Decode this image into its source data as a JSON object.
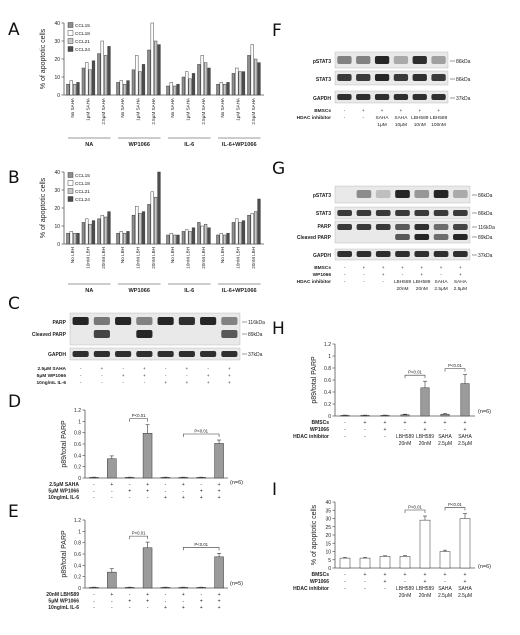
{
  "panel_letters": [
    "A",
    "B",
    "C",
    "D",
    "E",
    "F",
    "G",
    "H",
    "I"
  ],
  "colors": {
    "bar_gray": "#8e8e8e",
    "bar_dark": "#4d4d4d",
    "bar_light": "#c8c8c8",
    "bar_white": "#ffffff",
    "band": "#1b1b1b",
    "blot_bg": "#e9e9e9"
  },
  "chart_data": [
    {
      "id": "A",
      "type": "bar",
      "ylabel": "% of apoptotic cells",
      "ylim": [
        0,
        40
      ],
      "yticks": [
        0,
        10,
        20,
        30,
        40
      ],
      "groups": [
        {
          "name": "NA",
          "n": 4
        },
        {
          "name": "WP1066",
          "n": 4
        },
        {
          "name": "IL-6",
          "n": 4
        },
        {
          "name": "IL-6+WP1066",
          "n": 4
        }
      ],
      "categories": [
        "No SAHA",
        "1μM SAHA",
        "2.5μM SAHA",
        "No SAHA",
        "1μM SAHA",
        "2.5μM SAHA",
        "No SAHA",
        "1μM SAHA",
        "2.5μM SAHA",
        "No SAHA",
        "1μM SAHA",
        "2.5μM SAHA"
      ],
      "series": [
        {
          "name": "CCL15",
          "values": [
            6,
            15,
            23,
            7,
            14,
            25,
            5,
            10,
            17,
            6,
            12,
            22
          ]
        },
        {
          "name": "CCL18",
          "values": [
            8,
            18,
            30,
            8,
            22,
            40,
            7,
            13,
            22,
            7,
            15,
            28
          ]
        },
        {
          "name": "CCL21",
          "values": [
            6,
            14,
            22,
            6,
            13,
            30,
            5,
            9,
            18,
            6,
            13,
            20
          ]
        },
        {
          "name": "CCL24",
          "values": [
            7,
            19,
            27,
            8,
            17,
            28,
            6,
            12,
            15,
            7,
            13,
            18
          ]
        }
      ],
      "legend": "top-left"
    },
    {
      "id": "B",
      "type": "bar",
      "ylabel": "% of apoptotic cells",
      "ylim": [
        0,
        40
      ],
      "yticks": [
        0,
        10,
        20,
        30,
        40
      ],
      "groups": [
        {
          "name": "NA"
        },
        {
          "name": "WP1066"
        },
        {
          "name": "IL-6"
        },
        {
          "name": "IL-6+WP1066"
        }
      ],
      "categories": [
        "No LBH",
        "10nM LBH",
        "20nM LBH",
        "No LBH",
        "10nM LBH",
        "20nM LBH",
        "No LBH",
        "10nM LBH",
        "20nM LBH",
        "No LBH",
        "10nM LBH",
        "20nM LBH"
      ],
      "series": [
        {
          "name": "CCL15",
          "values": [
            6,
            12,
            14,
            6,
            16,
            22,
            5,
            7,
            12,
            5,
            12,
            16
          ]
        },
        {
          "name": "CCL18",
          "values": [
            7,
            14,
            16,
            7,
            21,
            29,
            6,
            8,
            10,
            6,
            14,
            17
          ]
        },
        {
          "name": "CCL21",
          "values": [
            6,
            11,
            15,
            6,
            17,
            26,
            5,
            7,
            11,
            5,
            12,
            18
          ]
        },
        {
          "name": "CCL24",
          "values": [
            6,
            13,
            18,
            7,
            18,
            40,
            5,
            9,
            9,
            6,
            13,
            25
          ]
        }
      ],
      "legend": "top-left"
    },
    {
      "id": "D",
      "type": "bar",
      "ylabel": "p89/total PARP",
      "ylim": [
        0,
        1.2
      ],
      "yticks": [
        "0",
        "0.2",
        "0.4",
        "0.6",
        "0.8",
        "1",
        "1.2"
      ],
      "values": [
        0.01,
        0.34,
        0.01,
        0.79,
        0.01,
        0.01,
        0.01,
        0.61
      ],
      "errors": [
        0.005,
        0.05,
        0.005,
        0.15,
        0.005,
        0.005,
        0.005,
        0.06
      ],
      "significance": [
        {
          "from": 3,
          "to": 4,
          "label": "P<0.01"
        },
        {
          "from": 6,
          "to": 8,
          "label": "P<0.01"
        }
      ],
      "n_label": "(n=6)",
      "conditions": [
        {
          "label": "2.5μM SAHA",
          "values": [
            "-",
            "+",
            "-",
            "+",
            "-",
            "+",
            "-",
            "+"
          ]
        },
        {
          "label": "5μM WP1066",
          "values": [
            "-",
            "-",
            "+",
            "+",
            "-",
            "-",
            "+",
            "+"
          ]
        },
        {
          "label": "10ng/mL IL-6",
          "values": [
            "-",
            "-",
            "-",
            "-",
            "+",
            "+",
            "+",
            "+"
          ]
        }
      ]
    },
    {
      "id": "E",
      "type": "bar",
      "ylabel": "p89/total PARP",
      "ylim": [
        0,
        1.2
      ],
      "yticks": [
        "0",
        "0.2",
        "0.4",
        "0.6",
        "0.8",
        "1",
        "1.2"
      ],
      "values": [
        0.01,
        0.28,
        0.01,
        0.71,
        0.01,
        0.01,
        0.01,
        0.55
      ],
      "errors": [
        0.005,
        0.06,
        0.005,
        0.1,
        0.005,
        0.005,
        0.005,
        0.06
      ],
      "significance": [
        {
          "from": 3,
          "to": 4,
          "label": "P<0.01"
        },
        {
          "from": 6,
          "to": 8,
          "label": "P<0.01"
        }
      ],
      "n_label": "(n=5)",
      "conditions": [
        {
          "label": "20nM LBH589",
          "values": [
            "-",
            "+",
            "-",
            "+",
            "-",
            "+",
            "-",
            "+"
          ]
        },
        {
          "label": "5μM WP1066",
          "values": [
            "-",
            "-",
            "+",
            "+",
            "-",
            "-",
            "+",
            "+"
          ]
        },
        {
          "label": "10ng/mL IL-6",
          "values": [
            "-",
            "-",
            "-",
            "-",
            "+",
            "+",
            "+",
            "+"
          ]
        }
      ]
    },
    {
      "id": "H",
      "type": "bar",
      "ylabel": "p89/total PARP",
      "ylim": [
        0,
        1.2
      ],
      "yticks": [
        "0",
        "0.2",
        "0.4",
        "0.6",
        "0.8",
        "1",
        "1.2"
      ],
      "values": [
        0.01,
        0.01,
        0.01,
        0.02,
        0.47,
        0.03,
        0.54
      ],
      "errors": [
        0.005,
        0.005,
        0.005,
        0.01,
        0.11,
        0.01,
        0.15
      ],
      "significance": [
        {
          "from": 4,
          "to": 5,
          "label": "P<0.01"
        },
        {
          "from": 6,
          "to": 7,
          "label": "P<0.01"
        }
      ],
      "n_label": "(n=6)",
      "conditions": [
        {
          "label": "BMSCs",
          "values": [
            "-",
            "+",
            "+",
            "+",
            "+",
            "+",
            "+"
          ]
        },
        {
          "label": "WP1066",
          "values": [
            "-",
            "-",
            "+",
            "-",
            "+",
            "-",
            "+"
          ]
        },
        {
          "label": "HDAC inhibitor",
          "values": [
            "-",
            "-",
            "-",
            "LBH589",
            "LBH589",
            "SAHA",
            "SAHA"
          ]
        },
        {
          "label": "",
          "values": [
            "",
            "",
            "",
            "20nM",
            "20nM",
            "2.5μM",
            "2.5μM"
          ]
        }
      ]
    },
    {
      "id": "I",
      "type": "bar",
      "ylabel": "% of apoptotic cells",
      "ylim": [
        0,
        40
      ],
      "yticks": [
        "0",
        "5",
        "10",
        "15",
        "20",
        "25",
        "30",
        "35",
        "40"
      ],
      "values": [
        6,
        6,
        7,
        7,
        29,
        10,
        30
      ],
      "errors": [
        0.4,
        0.4,
        0.4,
        0.5,
        2.5,
        0.8,
        3
      ],
      "significance": [
        {
          "from": 4,
          "to": 5,
          "label": "P<0.01"
        },
        {
          "from": 6,
          "to": 7,
          "label": "P<0.01"
        }
      ],
      "n_label": "(n=6)",
      "conditions": [
        {
          "label": "BMSCs",
          "values": [
            "-",
            "+",
            "+",
            "+",
            "+",
            "+",
            "+"
          ]
        },
        {
          "label": "WP1066",
          "values": [
            "-",
            "-",
            "+",
            "-",
            "+",
            "-",
            "+"
          ]
        },
        {
          "label": "HDAC inhibitor",
          "values": [
            "-",
            "-",
            "-",
            "LBH589",
            "LBH589",
            "SAHA",
            "SAHA"
          ]
        },
        {
          "label": "",
          "values": [
            "",
            "",
            "",
            "20nM",
            "20nM",
            "2.5μM",
            "2.5μM"
          ]
        }
      ]
    }
  ],
  "blots": {
    "C": {
      "rows": [
        {
          "label": "PARP",
          "kda": [
            "116kDa"
          ]
        },
        {
          "label": "Cleaved PARP",
          "kda": [
            "89kDa"
          ]
        },
        {
          "label": "GAPDH",
          "kda": [
            "37kDa"
          ]
        }
      ],
      "conditions": [
        {
          "label": "2.5μM SAHA",
          "values": [
            "-",
            "+",
            "-",
            "+",
            "-",
            "+",
            "-",
            "+"
          ]
        },
        {
          "label": "5μM WP1066",
          "values": [
            "-",
            "-",
            "+",
            "+",
            "-",
            "-",
            "+",
            "+"
          ]
        },
        {
          "label": "10ng/mL IL-6",
          "values": [
            "-",
            "-",
            "-",
            "-",
            "+",
            "+",
            "+",
            "+"
          ]
        }
      ]
    },
    "F": {
      "rows": [
        {
          "label": "pSTAT3",
          "kda": [
            "86kDa"
          ]
        },
        {
          "label": "STAT3",
          "kda": [
            "86kDa"
          ]
        },
        {
          "label": "GAPDH",
          "kda": [
            "37kDa"
          ]
        }
      ],
      "conditions": [
        {
          "label": "BMSCs",
          "values": [
            "-",
            "+",
            "+",
            "+",
            "+",
            "+"
          ]
        },
        {
          "label": "HDAC inhibitor",
          "values": [
            "-",
            "-",
            "SAHA",
            "SAHA",
            "LBH589",
            "LBH589"
          ]
        },
        {
          "label": "",
          "values": [
            "",
            "",
            "1μM",
            "10μM",
            "10nM",
            "100nM"
          ]
        }
      ]
    },
    "G": {
      "rows": [
        {
          "label": "pSTAT3",
          "kda": [
            "86kDa"
          ]
        },
        {
          "label": "STAT3",
          "kda": [
            "86kDa"
          ]
        },
        {
          "label": "PARP",
          "kda": [
            "116kDa"
          ]
        },
        {
          "label": "Cleaved PARP",
          "kda": [
            "89kDa"
          ]
        },
        {
          "label": "GAPDH",
          "kda": [
            "37kDa"
          ]
        }
      ],
      "conditions": [
        {
          "label": "BMSCs",
          "values": [
            "-",
            "+",
            "+",
            "+",
            "+",
            "+",
            "+"
          ]
        },
        {
          "label": "WP1066",
          "values": [
            "-",
            "-",
            "+",
            "-",
            "+",
            "-",
            "+"
          ]
        },
        {
          "label": "HDAC inhibitor",
          "values": [
            "-",
            "-",
            "-",
            "LBH589",
            "LBH589",
            "SAHA",
            "SAHA"
          ]
        },
        {
          "label": "",
          "values": [
            "",
            "",
            "",
            "20nM",
            "20nM",
            "2.5μM",
            "2.5μM"
          ]
        }
      ]
    }
  }
}
